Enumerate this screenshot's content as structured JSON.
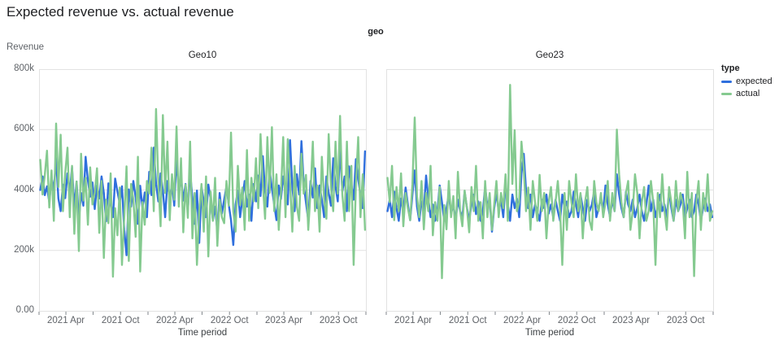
{
  "page": {
    "title": "Expected revenue vs. actual revenue"
  },
  "chart": {
    "facet_field_label": "geo",
    "y_axis_title": "Revenue",
    "x_axis_title": "Time period",
    "legend": {
      "title": "type",
      "items": [
        {
          "label": "expected",
          "color": "#2f6fdd"
        },
        {
          "label": "actual",
          "color": "#85ca90"
        }
      ]
    }
  },
  "colors": {
    "expected_line": "#2f6fdd",
    "actual_line": "#85ca90",
    "grid": "#e2e2e2",
    "tick_mark": "#80868b",
    "axis_text": "#5f6368",
    "title_text": "#202124"
  },
  "chart_data": {
    "type": "line",
    "title": "Expected revenue vs. actual revenue",
    "facet_field": "geo",
    "xlabel": "Time period",
    "ylabel": "Revenue",
    "unit": "values_k are revenue in thousands (k), weekly samples Jan 2021 - Dec 2023",
    "x_domain": [
      "2021-01",
      "2024-01"
    ],
    "y_max": 800,
    "y_ticks": [
      {
        "value": 800,
        "label": "800k"
      },
      {
        "value": 600,
        "label": "600k"
      },
      {
        "value": 400,
        "label": "400k"
      },
      {
        "value": 200,
        "label": "200k"
      },
      {
        "value": 0,
        "label": "0.00"
      }
    ],
    "x_tick_labels": [
      {
        "month_offset": 3,
        "label": "2021 Apr"
      },
      {
        "month_offset": 9,
        "label": "2021 Oct"
      },
      {
        "month_offset": 15,
        "label": "2022 Apr"
      },
      {
        "month_offset": 21,
        "label": "2022 Oct"
      },
      {
        "month_offset": 27,
        "label": "2023 Apr"
      },
      {
        "month_offset": 33,
        "label": "2023 Oct"
      }
    ],
    "x_minor_tick_months": [
      0,
      3,
      6,
      9,
      12,
      15,
      18,
      21,
      24,
      27,
      30,
      33,
      36
    ],
    "legend_position": "right",
    "grid": "horizontal-only",
    "facets": [
      {
        "title": "Geo10",
        "series": [
          {
            "name": "expected",
            "color": "#2f6fdd",
            "values_k": [
              400,
              445,
              383,
              412,
              360,
              442,
              398,
              505,
              372,
              330,
              418,
              373,
              455,
              392,
              475,
              340,
              428,
              300,
              390,
              348,
              510,
              432,
              378,
              425,
              337,
              415,
              372,
              445,
              390,
              296,
              422,
              360,
              310,
              438,
              395,
              356,
              412,
              268,
              184,
              402,
              345,
              430,
              376,
              288,
              414,
              340,
              392,
              310,
              460,
              383,
              540,
              420,
              362,
              455,
              398,
              310,
              430,
              372,
              418,
              348,
              508,
              390,
              442,
              365,
              420,
              332,
              458,
              375,
              288,
              398,
              225,
              410,
              362,
              310,
              418,
              370,
              300,
              345,
              262,
              390,
              322,
              368,
              412,
              352,
              300,
              218,
              352,
              398,
              310,
              372,
              430,
              345,
              385,
              298,
              420,
              362,
              448,
              380,
              512,
              395,
              345,
              468,
              405,
              352,
              300,
              415,
              370,
              445,
              398,
              352,
              565,
              410,
              330,
              452,
              385,
              562,
              420,
              358,
              300,
              430,
              375,
              472,
              340,
              415,
              368,
              310,
              445,
              390,
              348,
              505,
              412,
              362,
              540,
              395,
              445,
              330,
              478,
              420,
              368,
              502,
              435,
              385,
              340,
              528
            ]
          },
          {
            "name": "actual",
            "color": "#85ca90",
            "values_k": [
              500,
              385,
              450,
              530,
              342,
              465,
              298,
              620,
              410,
              583,
              330,
              456,
              540,
              310,
              480,
              255,
              428,
              198,
              520,
              365,
              440,
              285,
              475,
              352,
              390,
              472,
              258,
              430,
              175,
              368,
              290,
              455,
              113,
              340,
              250,
              408,
              152,
              310,
              478,
              165,
              420,
              368,
              245,
              510,
              130,
              360,
              285,
              430,
              388,
              540,
              330,
              668,
              425,
              280,
              648,
              390,
              560,
              300,
              452,
              368,
              610,
              345,
              505,
              260,
              418,
              308,
              560,
              240,
              390,
              152,
              330,
              420,
              262,
              445,
              180,
              395,
              298,
              440,
              215,
              368,
              310,
              290,
              430,
              348,
              590,
              330,
              262,
              480,
              350,
              408,
              268,
              532,
              298,
              440,
              362,
              505,
              340,
              585,
              420,
              305,
              575,
              390,
              608,
              330,
              452,
              268,
              390,
              575,
              310,
              568,
              425,
              262,
              480,
              345,
              298,
              520,
              388,
              450,
              268,
              395,
              560,
              330,
              415,
              262,
              510,
              370,
              305,
              585,
              410,
              330,
              560,
              388,
              645,
              385,
              298,
              560,
              330,
              480,
              152,
              420,
              575,
              310,
              452,
              268
            ]
          }
        ]
      },
      {
        "title": "Geo23",
        "series": [
          {
            "name": "expected",
            "color": "#2f6fdd",
            "values_k": [
              330,
              368,
              310,
              395,
              340,
              298,
              372,
              330,
              408,
              352,
              300,
              385,
              465,
              345,
              298,
              362,
              330,
              448,
              372,
              310,
              352,
              298,
              330,
              415,
              360,
              298,
              340,
              385,
              322,
              352,
              298,
              368,
              330,
              310,
              395,
              342,
              300,
              352,
              385,
              320,
              362,
              298,
              330,
              410,
              345,
              372,
              262,
              338,
              390,
              330,
              368,
              310,
              420,
              352,
              298,
              385,
              340,
              372,
              310,
              455,
              520,
              400,
              340,
              385,
              310,
              352,
              330,
              298,
              368,
              340,
              385,
              322,
              352,
              310,
              368,
              330,
              298,
              385,
              340,
              362,
              310,
              330,
              395,
              352,
              310,
              385,
              340,
              298,
              368,
              330,
              352,
              395,
              310,
              340,
              372,
              330,
              415,
              352,
              310,
              368,
              330,
              452,
              385,
              340,
              310,
              395,
              352,
              330,
              368,
              310,
              340,
              385,
              330,
              298,
              352,
              415,
              330,
              368,
              310,
              345,
              385,
              330,
              352,
              310,
              395,
              340,
              298,
              368,
              330,
              352,
              385,
              310,
              340,
              368,
              310,
              330,
              385,
              352,
              298,
              340,
              372,
              330,
              352,
              310
            ]
          },
          {
            "name": "actual",
            "color": "#85ca90",
            "values_k": [
              440,
              360,
              480,
              300,
              410,
              330,
              455,
              280,
              390,
              340,
              300,
              420,
              640,
              380,
              310,
              430,
              270,
              390,
              330,
              480,
              250,
              360,
              298,
              410,
              108,
              350,
              270,
              430,
              310,
              380,
              240,
              460,
              330,
              280,
              398,
              340,
              260,
              410,
              330,
              480,
              298,
              360,
              240,
              430,
              310,
              390,
              268,
              350,
              430,
              310,
              390,
              340,
              452,
              298,
              748,
              420,
              598,
              330,
              360,
              560,
              470,
              330,
              408,
              268,
              430,
              360,
              298,
              450,
              330,
              390,
              240,
              360,
              410,
              298,
              360,
              430,
              330,
              152,
              390,
              268,
              430,
              360,
              310,
              452,
              330,
              390,
              240,
              360,
              410,
              298,
              268,
              430,
              360,
              330,
              390,
              310,
              360,
              430,
              298,
              390,
              330,
              600,
              452,
              360,
              310,
              390,
              430,
              268,
              330,
              452,
              390,
              240,
              360,
              410,
              298,
              330,
              430,
              360,
              152,
              390,
              310,
              452,
              330,
              268,
              410,
              360,
              298,
              430,
              330,
              390,
              360,
              240,
              460,
              310,
              390,
              115,
              360,
              430,
              268,
              390,
              330,
              452,
              298,
              330
            ]
          }
        ]
      }
    ]
  }
}
